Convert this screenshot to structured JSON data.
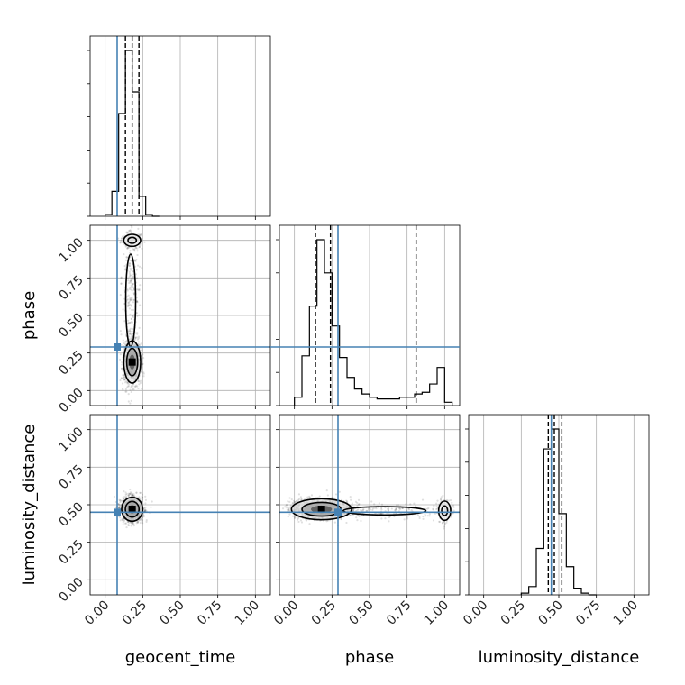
{
  "chart_data": {
    "type": "corner",
    "parameters": [
      "geocent_time",
      "phase",
      "luminosity_distance"
    ],
    "axis_range": [
      -0.1,
      1.1
    ],
    "tick_values": [
      0.0,
      0.25,
      0.5,
      0.75,
      1.0
    ],
    "tick_labels": [
      "0.00",
      "0.25",
      "0.50",
      "0.75",
      "1.00"
    ],
    "grid": true,
    "truth_color": "#4682b4",
    "truths": {
      "geocent_time": 0.08,
      "phase": 0.29,
      "luminosity_distance": 0.45
    },
    "histograms": [
      {
        "parameter": "geocent_time",
        "bin_edges": [
          0.0,
          0.045,
          0.09,
          0.135,
          0.18,
          0.225,
          0.27,
          0.315,
          0.36
        ],
        "counts": [
          1,
          15,
          62,
          100,
          75,
          12,
          1,
          0
        ],
        "quantiles": [
          0.135,
          0.18,
          0.225
        ]
      },
      {
        "parameter": "phase",
        "bin_edges": [
          0.0,
          0.05,
          0.1,
          0.15,
          0.2,
          0.25,
          0.3,
          0.35,
          0.4,
          0.45,
          0.5,
          0.55,
          0.6,
          0.65,
          0.7,
          0.75,
          0.8,
          0.85,
          0.9,
          0.95,
          1.0,
          1.05
        ],
        "counts": [
          5,
          30,
          60,
          100,
          80,
          48,
          29,
          17,
          10,
          7,
          5,
          4,
          4,
          4,
          5,
          5,
          7,
          8,
          13,
          23,
          2
        ],
        "quantiles": [
          0.14,
          0.24,
          0.81
        ]
      },
      {
        "parameter": "luminosity_distance",
        "bin_edges": [
          0.25,
          0.3,
          0.35,
          0.4,
          0.45,
          0.5,
          0.55,
          0.6,
          0.65,
          0.7,
          0.75
        ],
        "counts": [
          1,
          5,
          28,
          88,
          100,
          49,
          17,
          4,
          1,
          0
        ],
        "quantiles": [
          0.43,
          0.47,
          0.52
        ]
      }
    ],
    "contour_panels": [
      {
        "x": "geocent_time",
        "y": "phase",
        "modes": [
          {
            "cx": 0.18,
            "cy": 0.19,
            "sx": 0.028,
            "sy": 0.07,
            "weight": 0.7
          },
          {
            "cx": 0.18,
            "cy": 1.0,
            "sx": 0.035,
            "sy": 0.025,
            "weight": 0.12
          },
          {
            "cx": 0.17,
            "cy": 0.6,
            "sx": 0.03,
            "sy": 0.28,
            "weight": 0.18
          }
        ]
      },
      {
        "x": "geocent_time",
        "y": "luminosity_distance",
        "modes": [
          {
            "cx": 0.18,
            "cy": 0.47,
            "sx": 0.035,
            "sy": 0.04,
            "weight": 1.0
          }
        ]
      },
      {
        "x": "phase",
        "y": "luminosity_distance",
        "modes": [
          {
            "cx": 0.18,
            "cy": 0.47,
            "sx": 0.1,
            "sy": 0.035,
            "weight": 0.7
          },
          {
            "cx": 1.0,
            "cy": 0.46,
            "sx": 0.025,
            "sy": 0.04,
            "weight": 0.12
          },
          {
            "cx": 0.6,
            "cy": 0.46,
            "sx": 0.25,
            "sy": 0.025,
            "weight": 0.18
          }
        ]
      }
    ]
  }
}
